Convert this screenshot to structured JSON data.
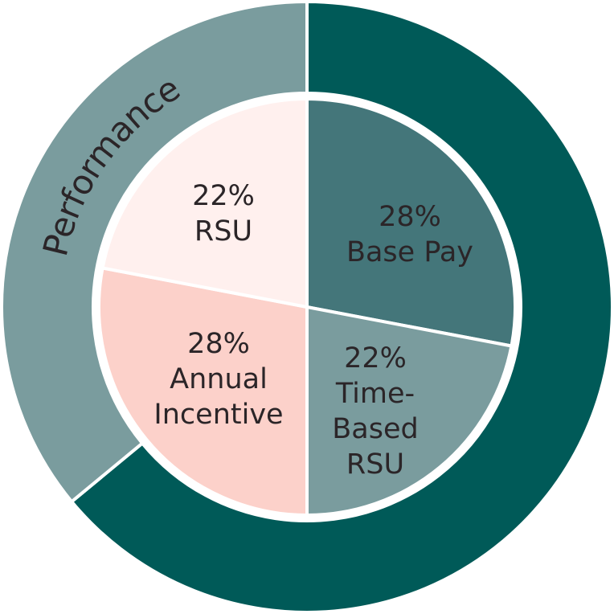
{
  "chart_data": {
    "type": "pie",
    "outer": {
      "categories": [
        null,
        "Performance"
      ],
      "values": [
        64,
        36
      ],
      "colors": [
        "#005a58",
        "#7a9c9e"
      ]
    },
    "inner": {
      "categories": [
        "Base Pay",
        "Time-Based RSU",
        "Annual Incentive",
        "RSU"
      ],
      "values": [
        28,
        22,
        28,
        22
      ],
      "value_labels": [
        "28%",
        "22%",
        "28%",
        "22%"
      ],
      "colors": [
        "#44767a",
        "#7a9c9e",
        "#fcd1ca",
        "#fff0ee"
      ]
    }
  }
}
